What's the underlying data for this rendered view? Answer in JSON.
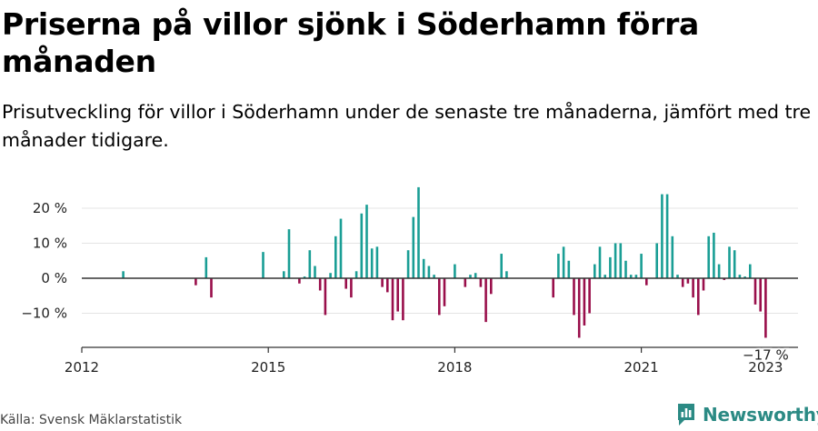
{
  "title": "Priserna på villor sjönk i Söderhamn förra månaden",
  "subtitle": "Prisutveckling för villor i Söderhamn under de senaste tre månaderna, jämfört med tre månader tidigare.",
  "source": "Källa: Svensk Mäklarstatistik",
  "brand": "Newsworthy",
  "colors": {
    "positive": "#1a9e95",
    "negative": "#990f4b",
    "axis": "#333333",
    "grid": "#e4e4e4",
    "brand": "#2b8a84"
  },
  "chart_data": {
    "type": "bar",
    "ylim": [
      -20,
      26
    ],
    "yticks": [
      -10,
      0,
      10,
      20
    ],
    "ytick_labels": [
      "−10 %",
      "0 %",
      "10 %",
      "20 %"
    ],
    "xticks": [
      2012,
      2015,
      2018,
      2021,
      2023
    ],
    "xtick_labels": [
      "2012",
      "2015",
      "2018",
      "2021",
      "2023"
    ],
    "last_label": "−17 %",
    "grid": true,
    "series": [
      {
        "x": [
          "2012-09",
          "2013-11",
          "2014-01",
          "2014-02",
          "2014-12",
          "2015-04",
          "2015-05",
          "2015-07",
          "2015-08",
          "2015-09",
          "2015-10",
          "2015-11",
          "2015-12",
          "2016-01",
          "2016-02",
          "2016-03",
          "2016-04",
          "2016-05",
          "2016-06",
          "2016-07",
          "2016-08",
          "2016-09",
          "2016-10",
          "2016-11",
          "2016-12",
          "2017-01",
          "2017-02",
          "2017-03",
          "2017-04",
          "2017-05",
          "2017-06",
          "2017-07",
          "2017-08",
          "2017-09",
          "2017-10",
          "2017-11",
          "2018-01",
          "2018-03",
          "2018-04",
          "2018-05",
          "2018-06",
          "2018-07",
          "2018-08",
          "2018-10",
          "2018-11",
          "2019-08",
          "2019-09",
          "2019-10",
          "2019-11",
          "2019-12",
          "2020-01",
          "2020-02",
          "2020-03",
          "2020-04",
          "2020-05",
          "2020-06",
          "2020-07",
          "2020-08",
          "2020-09",
          "2020-10",
          "2020-11",
          "2020-12",
          "2021-01",
          "2021-02",
          "2021-04",
          "2021-05",
          "2021-06",
          "2021-07",
          "2021-08",
          "2021-09",
          "2021-10",
          "2021-11",
          "2021-12",
          "2022-01",
          "2022-02",
          "2022-03",
          "2022-04",
          "2022-05",
          "2022-06",
          "2022-07",
          "2022-08",
          "2022-09",
          "2022-10",
          "2022-11",
          "2022-12",
          "2023-01"
        ],
        "values": [
          2,
          -2,
          6,
          -5.5,
          7.5,
          2,
          14,
          -1.5,
          0.5,
          8,
          3.5,
          -3.5,
          -10.5,
          1.5,
          12,
          17,
          -3,
          -5.5,
          2,
          18.5,
          21,
          8.5,
          9,
          -2.5,
          -4,
          -12,
          -9.5,
          -12,
          8,
          17.5,
          26,
          5.5,
          3.5,
          1,
          -10.5,
          -8,
          4,
          -2.5,
          1,
          1.5,
          -2.5,
          -12.5,
          -4.5,
          7,
          2,
          -5.5,
          7,
          9,
          5,
          -10.5,
          -17,
          -13.5,
          -10,
          4,
          9,
          1,
          6,
          10,
          10,
          5,
          1,
          1,
          7,
          -2,
          10,
          24,
          24,
          12,
          1,
          -2.5,
          -1.5,
          -5.5,
          -10.5,
          -3.5,
          12,
          13,
          4,
          -0.5,
          9,
          8,
          1,
          0.5,
          4,
          -7.5,
          -9.5,
          -17
        ]
      }
    ]
  }
}
